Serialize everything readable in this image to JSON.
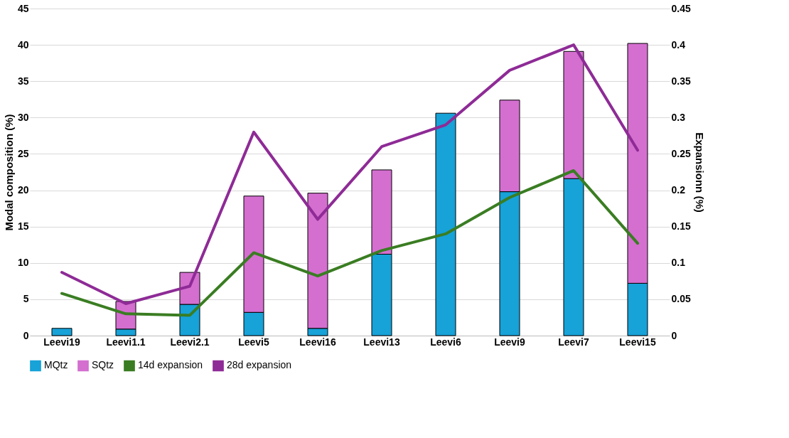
{
  "chart_data": {
    "type": "bar",
    "stacked": true,
    "ylabel": "Modal composition (%)",
    "y2label": "Expansionn (%)",
    "categories": [
      "Leevi19",
      "Leevi1.1",
      "Leevi2.1",
      "Leevi5",
      "Leevi16",
      "Leevi13",
      "Leevi6",
      "Leevi9",
      "Leevi7",
      "Leevi15"
    ],
    "series": [
      {
        "name": "MQtz",
        "color": "#17a2d8",
        "values": [
          1.0,
          0.9,
          4.3,
          3.2,
          1.0,
          11.2,
          30.6,
          19.8,
          21.6,
          7.2
        ]
      },
      {
        "name": "SQtz",
        "color": "#d46fd0",
        "values": [
          null,
          3.8,
          4.4,
          16.0,
          18.6,
          11.6,
          null,
          12.6,
          17.5,
          33.0
        ]
      },
      {
        "name": "14d expansion",
        "type": "line",
        "axis": "y2",
        "color": "#3a7d22",
        "values": [
          0.058,
          0.03,
          0.028,
          0.114,
          0.082,
          0.117,
          0.14,
          0.19,
          0.227,
          0.127
        ]
      },
      {
        "name": "28d expansion",
        "type": "line",
        "axis": "y2",
        "color": "#8e2b96",
        "values": [
          0.087,
          0.044,
          0.068,
          0.28,
          0.16,
          0.26,
          0.29,
          0.365,
          0.4,
          0.255
        ]
      }
    ],
    "ylim": [
      0,
      45
    ],
    "yticks": [
      0,
      5,
      10,
      15,
      20,
      25,
      30,
      35,
      40,
      45
    ],
    "y2lim": [
      0,
      0.45
    ],
    "y2ticks": [
      0,
      0.05,
      0.1,
      0.15,
      0.2,
      0.25,
      0.3,
      0.35,
      0.4,
      0.45
    ],
    "grid": "y",
    "legend": "bottom"
  }
}
